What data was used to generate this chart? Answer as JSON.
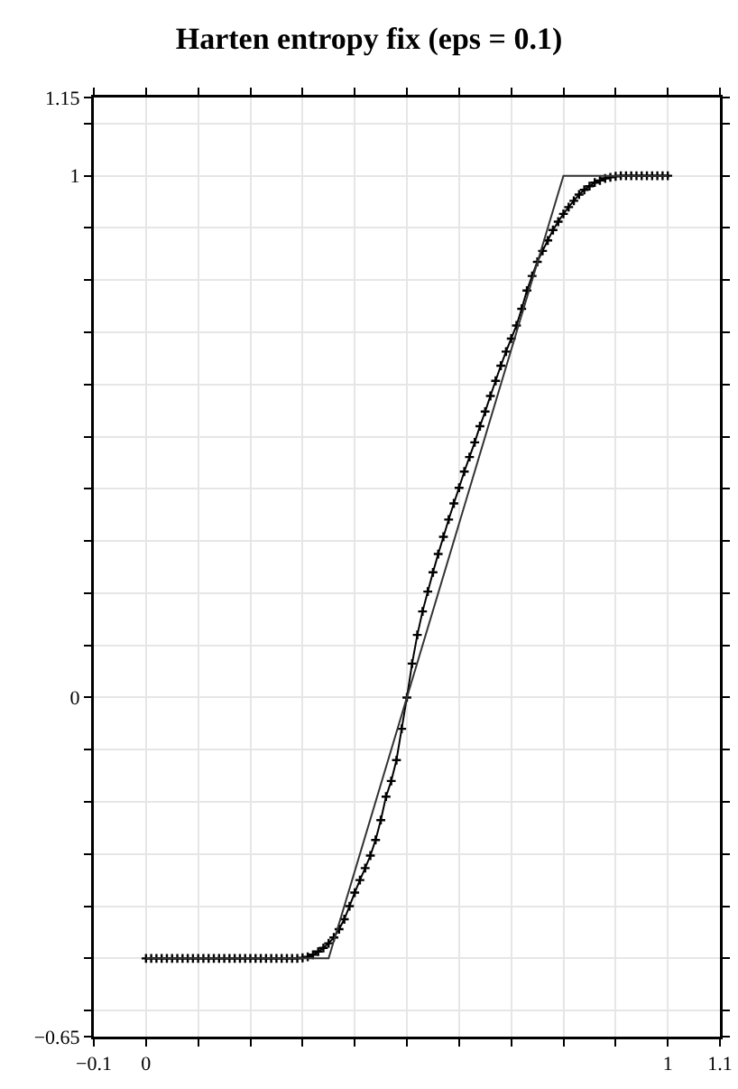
{
  "chart_data": {
    "type": "line",
    "title": "Harten entropy fix (eps = 0.1)",
    "series": [
      {
        "color": "#000000",
        "marker": "cross",
        "x": [
          0,
          0.01,
          0.02,
          0.03,
          0.04,
          0.05,
          0.06,
          0.07,
          0.08,
          0.09,
          0.1,
          0.11,
          0.12,
          0.13,
          0.14,
          0.15,
          0.16,
          0.17,
          0.18,
          0.19,
          0.2,
          0.21,
          0.22,
          0.23,
          0.24,
          0.25,
          0.26,
          0.27,
          0.28,
          0.29,
          0.3,
          0.31,
          0.32,
          0.33,
          0.34,
          0.35,
          0.36,
          0.37,
          0.38,
          0.39,
          0.4,
          0.41,
          0.42,
          0.43,
          0.44,
          0.45,
          0.46,
          0.47,
          0.48,
          0.49,
          0.5,
          0.51,
          0.52,
          0.53,
          0.54,
          0.55,
          0.56,
          0.57,
          0.58,
          0.59,
          0.6,
          0.61,
          0.62,
          0.63,
          0.64,
          0.65,
          0.66,
          0.67,
          0.68,
          0.69,
          0.7,
          0.71,
          0.72,
          0.73,
          0.74,
          0.75,
          0.76,
          0.77,
          0.78,
          0.79,
          0.8,
          0.81,
          0.82,
          0.83,
          0.84,
          0.85,
          0.86,
          0.87,
          0.88,
          0.89,
          0.9,
          0.91,
          0.92,
          0.93,
          0.94,
          0.95,
          0.96,
          0.97,
          0.98,
          0.99,
          1
        ],
        "values": [
          -0.5,
          -0.5,
          -0.5,
          -0.5,
          -0.5,
          -0.5,
          -0.5,
          -0.5,
          -0.5,
          -0.5,
          -0.5,
          -0.5,
          -0.5,
          -0.5,
          -0.5,
          -0.5,
          -0.5,
          -0.5,
          -0.5,
          -0.5,
          -0.5,
          -0.5,
          -0.5,
          -0.5,
          -0.5,
          -0.5,
          -0.5,
          -0.5,
          -0.5,
          -0.5,
          -0.499,
          -0.497,
          -0.493,
          -0.487,
          -0.48,
          -0.471,
          -0.46,
          -0.444,
          -0.425,
          -0.4,
          -0.374,
          -0.35,
          -0.327,
          -0.303,
          -0.273,
          -0.235,
          -0.19,
          -0.16,
          -0.12,
          -0.06,
          0,
          0.065,
          0.12,
          0.165,
          0.203,
          0.24,
          0.275,
          0.308,
          0.341,
          0.372,
          0.402,
          0.433,
          0.461,
          0.489,
          0.52,
          0.548,
          0.578,
          0.607,
          0.636,
          0.663,
          0.688,
          0.713,
          0.745,
          0.78,
          0.808,
          0.835,
          0.856,
          0.876,
          0.896,
          0.912,
          0.927,
          0.94,
          0.952,
          0.964,
          0.973,
          0.98,
          0.987,
          0.991,
          0.995,
          0.997,
          0.999,
          1,
          1,
          1,
          1,
          1,
          1,
          1,
          1,
          1,
          1
        ]
      },
      {
        "color": "#333333",
        "marker": "none",
        "x": [
          0,
          0.35,
          0.8,
          1
        ],
        "values": [
          -0.5,
          -0.5,
          1,
          1
        ]
      }
    ],
    "xlim": [
      -0.1,
      1.1
    ],
    "xticks": [
      -0.1,
      0,
      {
        "value": 0.1,
        "label": null
      },
      {
        "value": 0.2,
        "label": null
      },
      {
        "value": 0.3,
        "label": null
      },
      {
        "value": 0.4,
        "label": null
      },
      {
        "value": 0.5,
        "label": null
      },
      {
        "value": 0.6,
        "label": null
      },
      {
        "value": 0.7,
        "label": null
      },
      {
        "value": 0.8,
        "label": null
      },
      {
        "value": 0.9,
        "label": null
      },
      1,
      1.1
    ],
    "ylim": [
      -0.65,
      1.15
    ],
    "yticks": [
      -0.65,
      {
        "value": -0.6,
        "label": null
      },
      {
        "value": -0.5,
        "label": null
      },
      {
        "value": -0.4,
        "label": null
      },
      {
        "value": -0.3,
        "label": null
      },
      {
        "value": -0.2,
        "label": null
      },
      {
        "value": -0.1,
        "label": null
      },
      0,
      {
        "value": 0.1,
        "label": null
      },
      {
        "value": 0.2,
        "label": null
      },
      {
        "value": 0.3,
        "label": null
      },
      {
        "value": 0.4,
        "label": null
      },
      {
        "value": 0.5,
        "label": null
      },
      {
        "value": 0.6,
        "label": null
      },
      {
        "value": 0.7,
        "label": null
      },
      {
        "value": 0.8,
        "label": null
      },
      {
        "value": 0.9,
        "label": null
      },
      1,
      {
        "value": 1.1,
        "label": null
      },
      1.15
    ],
    "grid": true,
    "line_style": "solid"
  }
}
